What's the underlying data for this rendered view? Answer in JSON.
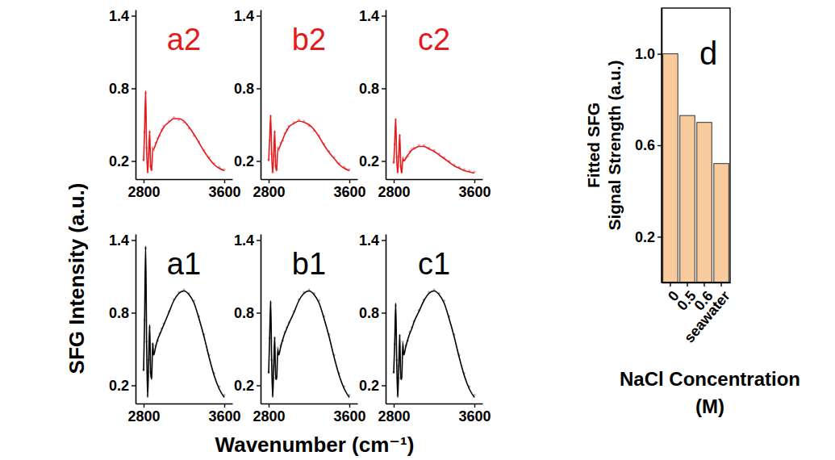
{
  "figure": {
    "xlabel": "Wavenumber (cm⁻¹)",
    "ylabel": "SFG Intensity (a.u.)"
  },
  "chart_data": [
    {
      "type": "line",
      "title": "a2",
      "color": "#e41a1c",
      "x": [
        2800,
        2810,
        2820,
        2830,
        2840,
        2850,
        2860,
        2870,
        2880,
        2890,
        2900,
        2920,
        2940,
        2960,
        2980,
        3000,
        3050,
        3100,
        3150,
        3200,
        3250,
        3300,
        3350,
        3400,
        3450,
        3500,
        3550,
        3600
      ],
      "series": [
        {
          "type": "scatter",
          "marker": "circle",
          "color": "#f2a0a0",
          "values": [
            0.21,
            0.44,
            0.76,
            0.31,
            0.11,
            0.26,
            0.44,
            0.16,
            0.13,
            0.31,
            0.29,
            0.35,
            0.39,
            0.41,
            0.46,
            0.49,
            0.53,
            0.56,
            0.54,
            0.52,
            0.47,
            0.41,
            0.36,
            0.29,
            0.23,
            0.18,
            0.15,
            0.13
          ]
        },
        {
          "type": "line",
          "color": "#e41a1c",
          "values": [
            0.2,
            0.45,
            0.78,
            0.3,
            0.1,
            0.25,
            0.45,
            0.15,
            0.12,
            0.3,
            0.3,
            0.34,
            0.38,
            0.42,
            0.45,
            0.48,
            0.52,
            0.55,
            0.55,
            0.53,
            0.48,
            0.42,
            0.35,
            0.28,
            0.22,
            0.17,
            0.14,
            0.12
          ]
        }
      ],
      "xlim": [
        2720,
        3680
      ],
      "xticks": [
        2800,
        3600
      ],
      "ylim": [
        0.05,
        1.45
      ],
      "yticks": [
        0.2,
        0.8,
        1.4
      ]
    },
    {
      "type": "line",
      "title": "b2",
      "color": "#e41a1c",
      "x": [
        2800,
        2810,
        2820,
        2830,
        2840,
        2850,
        2860,
        2870,
        2880,
        2890,
        2900,
        2920,
        2940,
        2960,
        2980,
        3000,
        3050,
        3100,
        3150,
        3200,
        3250,
        3300,
        3350,
        3400,
        3450,
        3500,
        3550,
        3600
      ],
      "series": [
        {
          "type": "scatter",
          "marker": "circle",
          "color": "#f2a0a0",
          "values": [
            0.21,
            0.37,
            0.57,
            0.26,
            0.11,
            0.24,
            0.44,
            0.16,
            0.13,
            0.31,
            0.29,
            0.35,
            0.37,
            0.43,
            0.46,
            0.49,
            0.52,
            0.54,
            0.53,
            0.49,
            0.45,
            0.41,
            0.34,
            0.28,
            0.23,
            0.18,
            0.15,
            0.13
          ]
        },
        {
          "type": "line",
          "color": "#e41a1c",
          "values": [
            0.2,
            0.38,
            0.58,
            0.25,
            0.1,
            0.25,
            0.45,
            0.15,
            0.12,
            0.3,
            0.3,
            0.34,
            0.38,
            0.42,
            0.45,
            0.48,
            0.51,
            0.53,
            0.52,
            0.5,
            0.46,
            0.4,
            0.33,
            0.27,
            0.22,
            0.17,
            0.14,
            0.12
          ]
        }
      ],
      "xlim": [
        2720,
        3680
      ],
      "xticks": [
        2800,
        3600
      ],
      "ylim": [
        0.05,
        1.45
      ],
      "yticks": [
        0.2,
        0.8,
        1.4
      ]
    },
    {
      "type": "line",
      "title": "c2",
      "color": "#e41a1c",
      "x": [
        2800,
        2810,
        2820,
        2830,
        2840,
        2850,
        2860,
        2870,
        2880,
        2890,
        2900,
        2920,
        2940,
        2960,
        2980,
        3000,
        3050,
        3100,
        3150,
        3200,
        3250,
        3300,
        3350,
        3400,
        3450,
        3500,
        3550,
        3600
      ],
      "series": [
        {
          "type": "scatter",
          "marker": "circle",
          "color": "#f2a0a0",
          "values": [
            0.19,
            0.34,
            0.54,
            0.23,
            0.11,
            0.24,
            0.41,
            0.16,
            0.11,
            0.23,
            0.21,
            0.23,
            0.24,
            0.28,
            0.3,
            0.31,
            0.33,
            0.33,
            0.31,
            0.29,
            0.26,
            0.23,
            0.2,
            0.17,
            0.15,
            0.13,
            0.12,
            0.11
          ]
        },
        {
          "type": "line",
          "color": "#e41a1c",
          "values": [
            0.18,
            0.35,
            0.55,
            0.22,
            0.1,
            0.25,
            0.42,
            0.15,
            0.1,
            0.22,
            0.2,
            0.22,
            0.25,
            0.27,
            0.29,
            0.3,
            0.32,
            0.32,
            0.3,
            0.28,
            0.25,
            0.22,
            0.19,
            0.16,
            0.14,
            0.12,
            0.11,
            0.1
          ]
        }
      ],
      "xlim": [
        2720,
        3680
      ],
      "xticks": [
        2800,
        3600
      ],
      "ylim": [
        0.05,
        1.45
      ],
      "yticks": [
        0.2,
        0.8,
        1.4
      ]
    },
    {
      "type": "line",
      "title": "a1",
      "color": "#000000",
      "x": [
        2800,
        2810,
        2820,
        2830,
        2840,
        2850,
        2860,
        2870,
        2880,
        2890,
        2900,
        2920,
        2940,
        2960,
        2980,
        3000,
        3050,
        3100,
        3150,
        3200,
        3250,
        3300,
        3350,
        3400,
        3450,
        3500,
        3550,
        3600
      ],
      "series": [
        {
          "type": "scatter",
          "marker": "circle",
          "color": "#b0b0b0",
          "values": [
            0.33,
            0.74,
            1.33,
            0.56,
            0.12,
            0.41,
            0.68,
            0.31,
            0.27,
            0.54,
            0.46,
            0.53,
            0.57,
            0.63,
            0.67,
            0.71,
            0.81,
            0.91,
            0.97,
            0.99,
            0.96,
            0.9,
            0.77,
            0.62,
            0.45,
            0.3,
            0.19,
            0.12
          ]
        },
        {
          "type": "line",
          "color": "#000000",
          "values": [
            0.32,
            0.75,
            1.35,
            0.55,
            0.1,
            0.4,
            0.7,
            0.3,
            0.25,
            0.55,
            0.45,
            0.52,
            0.58,
            0.62,
            0.66,
            0.7,
            0.8,
            0.9,
            0.96,
            0.98,
            0.95,
            0.88,
            0.75,
            0.6,
            0.43,
            0.28,
            0.17,
            0.1
          ]
        }
      ],
      "xlim": [
        2720,
        3680
      ],
      "xticks": [
        2800,
        3600
      ],
      "ylim": [
        0.05,
        1.45
      ],
      "yticks": [
        0.2,
        0.8,
        1.4
      ]
    },
    {
      "type": "line",
      "title": "b1",
      "color": "#000000",
      "x": [
        2800,
        2810,
        2820,
        2830,
        2840,
        2850,
        2860,
        2870,
        2880,
        2890,
        2900,
        2920,
        2940,
        2960,
        2980,
        3000,
        3050,
        3100,
        3150,
        3200,
        3250,
        3300,
        3350,
        3400,
        3450,
        3500,
        3550,
        3600
      ],
      "series": [
        {
          "type": "scatter",
          "marker": "circle",
          "color": "#b0b0b0",
          "values": [
            0.31,
            0.59,
            0.88,
            0.41,
            0.12,
            0.36,
            0.59,
            0.26,
            0.27,
            0.51,
            0.46,
            0.53,
            0.57,
            0.64,
            0.68,
            0.72,
            0.81,
            0.91,
            0.97,
            0.99,
            0.96,
            0.9,
            0.77,
            0.62,
            0.45,
            0.3,
            0.19,
            0.12
          ]
        },
        {
          "type": "line",
          "color": "#000000",
          "values": [
            0.3,
            0.6,
            0.9,
            0.4,
            0.1,
            0.35,
            0.6,
            0.25,
            0.25,
            0.5,
            0.45,
            0.52,
            0.58,
            0.63,
            0.67,
            0.71,
            0.8,
            0.9,
            0.96,
            0.98,
            0.95,
            0.88,
            0.75,
            0.6,
            0.43,
            0.28,
            0.17,
            0.1
          ]
        }
      ],
      "xlim": [
        2720,
        3680
      ],
      "xticks": [
        2800,
        3600
      ],
      "ylim": [
        0.05,
        1.45
      ],
      "yticks": [
        0.2,
        0.8,
        1.4
      ]
    },
    {
      "type": "line",
      "title": "c1",
      "color": "#000000",
      "x": [
        2800,
        2810,
        2820,
        2830,
        2840,
        2850,
        2860,
        2870,
        2880,
        2890,
        2900,
        2920,
        2940,
        2960,
        2980,
        3000,
        3050,
        3100,
        3150,
        3200,
        3250,
        3300,
        3350,
        3400,
        3450,
        3500,
        3550,
        3600
      ],
      "series": [
        {
          "type": "scatter",
          "marker": "circle",
          "color": "#b0b0b0",
          "values": [
            0.31,
            0.54,
            0.86,
            0.41,
            0.12,
            0.36,
            0.61,
            0.26,
            0.27,
            0.56,
            0.46,
            0.53,
            0.57,
            0.64,
            0.68,
            0.73,
            0.82,
            0.91,
            0.97,
            0.99,
            0.96,
            0.9,
            0.77,
            0.62,
            0.45,
            0.3,
            0.19,
            0.12
          ]
        },
        {
          "type": "line",
          "color": "#000000",
          "values": [
            0.3,
            0.55,
            0.88,
            0.4,
            0.1,
            0.35,
            0.62,
            0.25,
            0.25,
            0.55,
            0.45,
            0.52,
            0.58,
            0.63,
            0.67,
            0.72,
            0.81,
            0.9,
            0.96,
            0.98,
            0.95,
            0.88,
            0.75,
            0.6,
            0.43,
            0.28,
            0.17,
            0.1
          ]
        }
      ],
      "xlim": [
        2720,
        3680
      ],
      "xticks": [
        2800,
        3600
      ],
      "ylim": [
        0.05,
        1.45
      ],
      "yticks": [
        0.2,
        0.8,
        1.4
      ]
    },
    {
      "type": "bar",
      "title": "d",
      "ylabel": [
        "Fitted SFG",
        "Signal Strength (a.u.)"
      ],
      "xlabel": [
        "NaCl Concentration",
        "(M)"
      ],
      "categories": [
        "0",
        "0.5",
        "0.6",
        "seawater"
      ],
      "values": [
        1.0,
        0.73,
        0.7,
        0.52
      ],
      "color": "#f9cb9c",
      "ylim": [
        0,
        1.2
      ],
      "yticks": [
        0.2,
        0.6,
        {
          "value": 1.0,
          "label": "1.0"
        }
      ]
    }
  ]
}
